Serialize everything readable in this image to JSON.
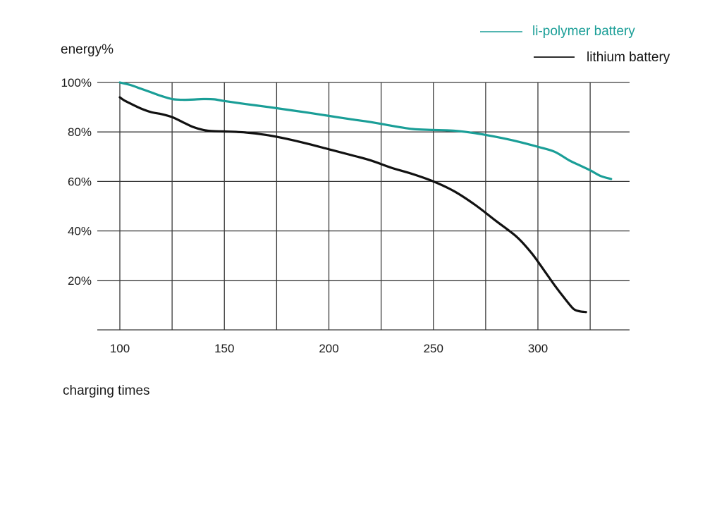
{
  "chart_data": {
    "type": "line",
    "title": "",
    "xlabel": "charging times",
    "ylabel": "energy%",
    "xlim": [
      100,
      350
    ],
    "ylim": [
      0,
      100
    ],
    "x_ticks": [
      100,
      150,
      200,
      250,
      300
    ],
    "x_tick_labels": [
      "100",
      "150",
      "200",
      "250",
      "300"
    ],
    "y_ticks": [
      20,
      40,
      60,
      80,
      100
    ],
    "y_tick_labels": [
      "20%",
      "40%",
      "60%",
      "80%",
      "100%"
    ],
    "grid": true,
    "legend_position": "top-right",
    "series": [
      {
        "name": "li-polymer battery",
        "color": "#1a9e97",
        "x": [
          100,
          105,
          110,
          115,
          120,
          125,
          130,
          135,
          140,
          145,
          150,
          160,
          170,
          180,
          190,
          200,
          210,
          220,
          230,
          240,
          250,
          260,
          270,
          280,
          290,
          300,
          308,
          315,
          320,
          325,
          330,
          335
        ],
        "y": [
          100,
          99,
          97.5,
          96,
          94.5,
          93.3,
          93,
          93.1,
          93.3,
          93.2,
          92.5,
          91.3,
          90.2,
          89,
          87.8,
          86.5,
          85.2,
          84,
          82.5,
          81.2,
          80.8,
          80.5,
          79.5,
          78,
          76.2,
          74,
          72,
          68.5,
          66.5,
          64.5,
          62.2,
          61
        ]
      },
      {
        "name": "lithium battery",
        "color": "#111111",
        "x": [
          100,
          102,
          105,
          110,
          115,
          120,
          125,
          130,
          135,
          140,
          145,
          150,
          160,
          170,
          180,
          190,
          200,
          210,
          220,
          230,
          240,
          250,
          260,
          270,
          280,
          290,
          297,
          303,
          308,
          313,
          317,
          320,
          323
        ],
        "y": [
          94,
          92.8,
          91.5,
          89.5,
          88,
          87.2,
          86,
          84,
          82,
          80.8,
          80.3,
          80.2,
          79.8,
          78.8,
          77.2,
          75.2,
          73,
          70.8,
          68.5,
          65.5,
          63,
          60,
          56,
          50.5,
          44,
          37.5,
          31,
          24,
          18,
          12.5,
          8.5,
          7.5,
          7.2
        ]
      }
    ]
  }
}
